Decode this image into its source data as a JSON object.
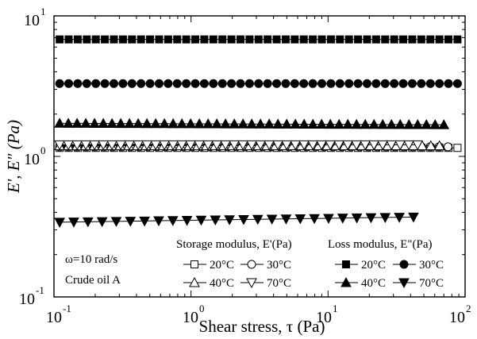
{
  "chart_data": {
    "type": "scatter",
    "xscale": "log",
    "yscale": "log",
    "xlim": [
      0.1,
      100
    ],
    "ylim": [
      0.1,
      10
    ],
    "x_ticks": [
      {
        "base": "10",
        "exp": "-1"
      },
      {
        "base": "10",
        "exp": "0"
      },
      {
        "base": "10",
        "exp": "1"
      },
      {
        "base": "10",
        "exp": "2"
      }
    ],
    "y_ticks": [
      {
        "base": "10",
        "exp": "-1"
      },
      {
        "base": "10",
        "exp": "0"
      },
      {
        "base": "10",
        "exp": "1"
      }
    ],
    "xlabel": "Shear stress, τ (Pa)",
    "ylabel": "E', E\" (Pa)",
    "annotations": [
      "ω=10 rad/s",
      "Crude oil A"
    ],
    "legend": {
      "placement": "bottom-right",
      "storage_title": "Storage modulus, E'(Pa)",
      "loss_title": "Loss modulus, E\"(Pa)"
    },
    "series": [
      {
        "name": "20°C",
        "group": "storage",
        "marker": "square",
        "filled": false,
        "x_range": [
          0.11,
          88
        ],
        "n": 45,
        "y_start": 1.15,
        "y_end": 1.15
      },
      {
        "name": "30°C",
        "group": "storage",
        "marker": "circle",
        "filled": false,
        "x_range": [
          0.11,
          75
        ],
        "n": 45,
        "y_start": 1.17,
        "y_end": 1.17
      },
      {
        "name": "40°C",
        "group": "storage",
        "marker": "triangle-up",
        "filled": false,
        "x_range": [
          0.11,
          65
        ],
        "n": 45,
        "y_start": 1.19,
        "y_end": 1.19
      },
      {
        "name": "70°C",
        "group": "storage",
        "marker": "triangle-down",
        "filled": false,
        "x_range": [
          0.11,
          45
        ],
        "n": 42,
        "y_start": 1.21,
        "y_end": 1.21
      },
      {
        "name": "20°C",
        "group": "loss",
        "marker": "square",
        "filled": true,
        "x_range": [
          0.11,
          88
        ],
        "n": 45,
        "y_start": 6.8,
        "y_end": 6.8
      },
      {
        "name": "30°C",
        "group": "loss",
        "marker": "circle",
        "filled": true,
        "x_range": [
          0.11,
          88
        ],
        "n": 45,
        "y_start": 3.3,
        "y_end": 3.3
      },
      {
        "name": "40°C",
        "group": "loss",
        "marker": "triangle-up",
        "filled": true,
        "x_range": [
          0.11,
          70
        ],
        "n": 45,
        "y_start": 1.72,
        "y_end": 1.68
      },
      {
        "name": "70°C",
        "group": "loss",
        "marker": "triangle-down",
        "filled": true,
        "x_range": [
          0.11,
          42
        ],
        "n": 26,
        "y_start": 0.34,
        "y_end": 0.37
      }
    ]
  }
}
